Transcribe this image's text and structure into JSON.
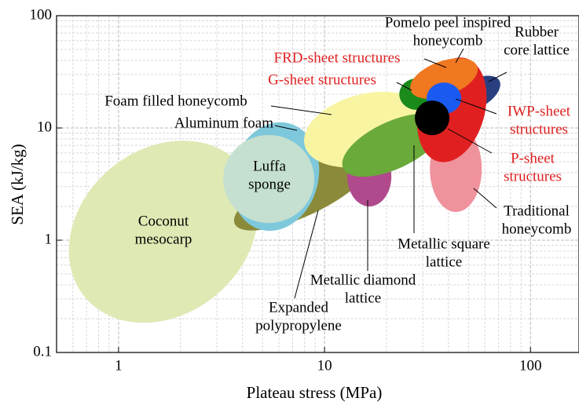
{
  "chart_data": {
    "type": "ellipse-map",
    "x_label": "Plateau stress (MPa)",
    "y_label": "SEA (kJ/kg)",
    "xlim": [
      0.5,
      172
    ],
    "ylim": [
      0.1,
      100
    ],
    "xticks": [
      1,
      10,
      100
    ],
    "yticks": [
      0.1,
      1,
      10,
      100
    ],
    "log_x": true,
    "log_y": true,
    "grid": true,
    "minor_grid": true,
    "regions": [
      {
        "name": [
          "Coconut",
          "mesocarp"
        ],
        "color": "#dfe9b4",
        "label_color": "#000000",
        "x": 1.65,
        "y": 1.19,
        "x_span": 0.496,
        "y_span": 0.734,
        "angle": -40
      },
      {
        "name": [
          "Expanded",
          "polypropylene"
        ],
        "color": "#8a8a3a",
        "label_color": "#000000",
        "x": 7.82,
        "y": 2.67,
        "x_span": 0.363,
        "y_span": 0.21,
        "angle": -25
      },
      {
        "name": [
          "Metallic diamond",
          "lattice"
        ],
        "color": "#b04a8c",
        "label_color": "#000000",
        "x": 16.5,
        "y": 3.69,
        "x_span": 0.107,
        "y_span": 0.266,
        "angle": 0
      },
      {
        "name": [
          "Aluminum foam"
        ],
        "color": "#7ec8dc",
        "label_color": "#000000",
        "x": 5.75,
        "y": 3.69,
        "x_span": 0.21,
        "y_span": 0.49,
        "angle": 15
      },
      {
        "name": [
          "Luffa",
          "sponge"
        ],
        "color": "#c5e0d0",
        "label_color": "#000000",
        "x": 5.36,
        "y": 3.51,
        "x_span": 0.221,
        "y_span": 0.392,
        "angle": 0
      },
      {
        "name": [
          "Foam filled honeycomb"
        ],
        "color": "#f8f4a2",
        "label_color": "#000000",
        "x": 15.8,
        "y": 9.68,
        "x_span": 0.305,
        "y_span": 0.315,
        "angle": -15
      },
      {
        "name": [
          "Metallic square",
          "lattice"
        ],
        "color": "#6aaa3a",
        "label_color": "#000000",
        "x": 21.5,
        "y": 7.02,
        "x_span": 0.267,
        "y_span": 0.21,
        "angle": -25
      },
      {
        "name": [
          "Traditional",
          "honeycomb"
        ],
        "color": "#f0929c",
        "label_color": "#000000",
        "x": 43.4,
        "y": 4.33,
        "x_span": 0.126,
        "y_span": 0.385,
        "angle": 0
      },
      {
        "name": [
          "Rubber",
          "core lattice"
        ],
        "color": "#2a3f80",
        "label_color": "#000000",
        "x": 54,
        "y": 20,
        "x_span": 0.134,
        "y_span": 0.126,
        "angle": -30
      },
      {
        "name": [
          "Pomelo peel inspired",
          "honeycomb"
        ],
        "color": "#e02020",
        "label_color": "#000000",
        "x": 41.5,
        "y": 14.5,
        "x_span": 0.16,
        "y_span": 0.476,
        "angle": 15
      },
      {
        "name": [
          "G-sheet structures"
        ],
        "color": "#1a8a1a",
        "label_color": "#e02020",
        "x": 28,
        "y": 20,
        "x_span": 0.084,
        "y_span": 0.14,
        "angle": 0
      },
      {
        "name": [
          "FRD-sheet structures"
        ],
        "color": "#f07820",
        "label_color": "#e02020",
        "x": 38,
        "y": 27.6,
        "x_span": 0.172,
        "y_span": 0.154,
        "angle": -20
      },
      {
        "name": [
          "IWP-sheet",
          "structures"
        ],
        "color": "#1a5af0",
        "label_color": "#e02020",
        "x": 38,
        "y": 18.4,
        "x_span": 0.084,
        "y_span": 0.14,
        "angle": 0
      },
      {
        "name": [
          "P-sheet",
          "structures"
        ],
        "color": "#000000",
        "label_color": "#e02020",
        "x": 33.3,
        "y": 12.3,
        "x_span": 0.084,
        "y_span": 0.154,
        "angle": 0
      }
    ]
  }
}
